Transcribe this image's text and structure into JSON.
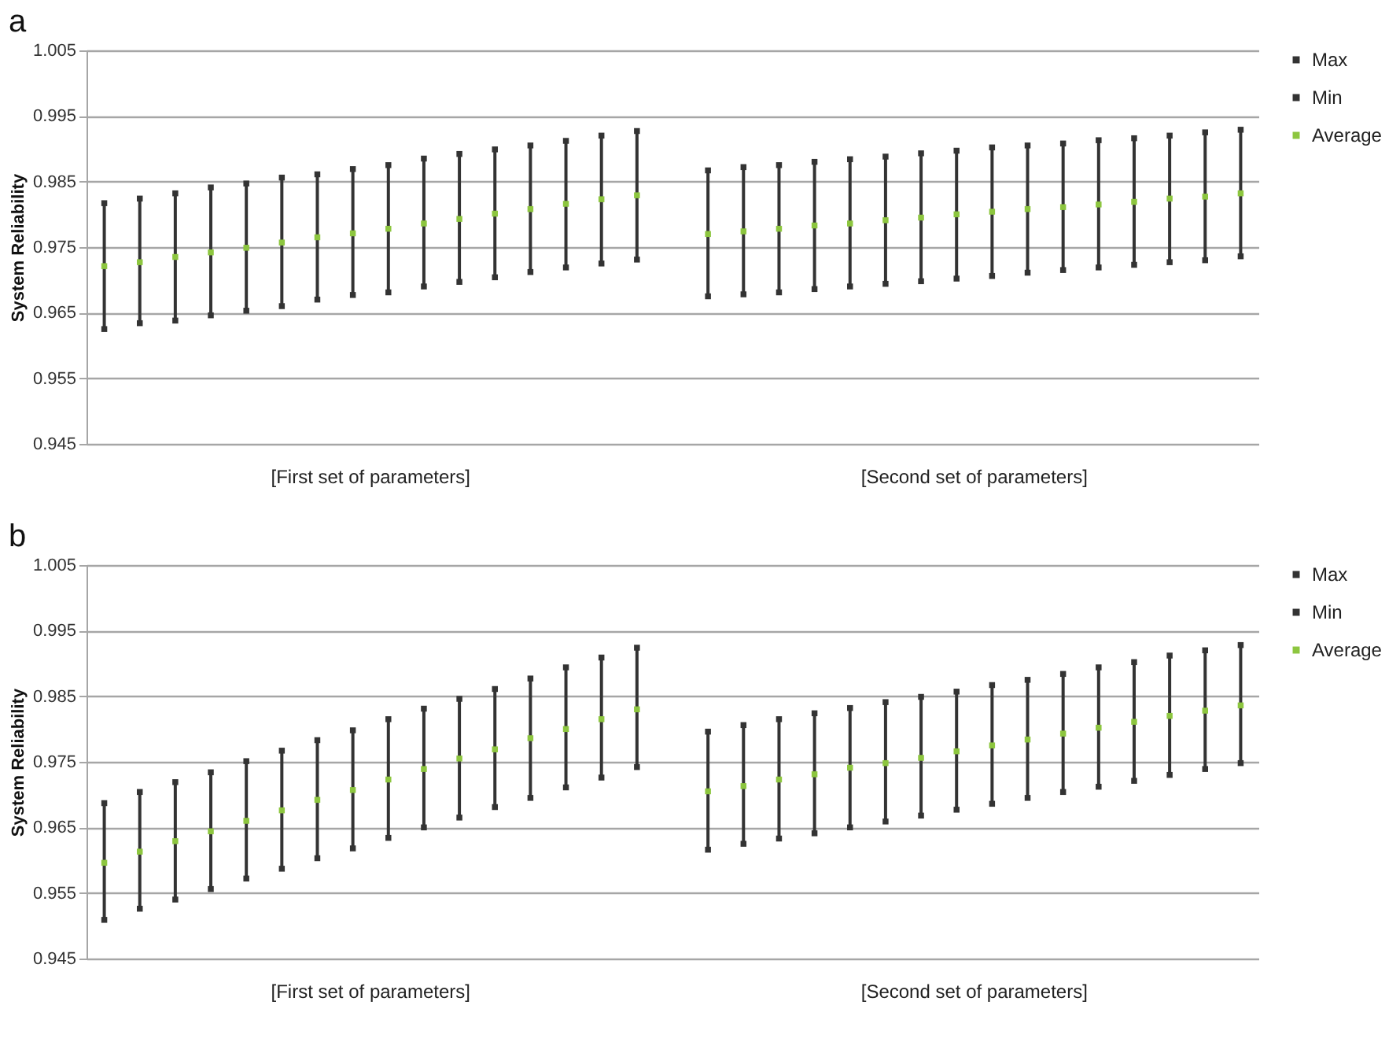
{
  "chart_data": [
    {
      "type": "scatter",
      "title": "a",
      "ylabel": "System Reliability",
      "categories": [
        null,
        null,
        null,
        null,
        null,
        null,
        null,
        null,
        null,
        null,
        null,
        null,
        null,
        null,
        null,
        null,
        null,
        null,
        null,
        null,
        null,
        null,
        null,
        null,
        null,
        null,
        null,
        null,
        null,
        null,
        null,
        null,
        null
      ],
      "ylim": [
        0.945,
        1.005
      ],
      "yticks": [
        0.945,
        0.955,
        0.965,
        0.975,
        0.985,
        0.995,
        1.005
      ],
      "grid": "y",
      "legend": "right",
      "annotations": [
        "[First set of parameters]",
        "[Second set of parameters]"
      ],
      "series": [
        {
          "name": "Max",
          "color": "#333333",
          "marker": "square",
          "values": [
            0.9817,
            0.9824,
            0.9832,
            0.9841,
            0.9847,
            0.9856,
            0.9861,
            0.9869,
            0.9875,
            0.9885,
            0.9892,
            0.9899,
            0.9905,
            0.9912,
            0.992,
            0.9927,
            null,
            0.9867,
            0.9872,
            0.9875,
            0.988,
            0.9884,
            0.9888,
            0.9893,
            0.9897,
            0.9902,
            0.9905,
            0.9908,
            0.9913,
            0.9916,
            0.992,
            0.9925,
            0.9929
          ]
        },
        {
          "name": "Min",
          "color": "#333333",
          "marker": "square",
          "values": [
            0.9625,
            0.9634,
            0.9638,
            0.9646,
            0.9653,
            0.966,
            0.967,
            0.9677,
            0.9681,
            0.969,
            0.9697,
            0.9704,
            0.9712,
            0.9719,
            0.9725,
            0.9731,
            null,
            0.9675,
            0.9678,
            0.9681,
            0.9686,
            0.969,
            0.9694,
            0.9698,
            0.9702,
            0.9706,
            0.9711,
            0.9715,
            0.9719,
            0.9723,
            0.9727,
            0.973,
            0.9736
          ]
        },
        {
          "name": "Average",
          "color": "#8dc63f",
          "marker": "square",
          "values": [
            0.9721,
            0.9727,
            0.9735,
            0.9742,
            0.9749,
            0.9757,
            0.9765,
            0.9771,
            0.9778,
            0.9786,
            0.9793,
            0.9801,
            0.9808,
            0.9816,
            0.9823,
            0.9829,
            null,
            0.977,
            0.9774,
            0.9778,
            0.9783,
            0.9786,
            0.9791,
            0.9795,
            0.98,
            0.9804,
            0.9808,
            0.9811,
            0.9815,
            0.9819,
            0.9824,
            0.9827,
            0.9832
          ]
        }
      ]
    },
    {
      "type": "scatter",
      "title": "b",
      "ylabel": "System Reliability",
      "categories": [
        null,
        null,
        null,
        null,
        null,
        null,
        null,
        null,
        null,
        null,
        null,
        null,
        null,
        null,
        null,
        null,
        null,
        null,
        null,
        null,
        null,
        null,
        null,
        null,
        null,
        null,
        null,
        null,
        null,
        null,
        null,
        null,
        null
      ],
      "ylim": [
        0.945,
        1.005
      ],
      "yticks": [
        0.945,
        0.955,
        0.965,
        0.975,
        0.985,
        0.995,
        1.005
      ],
      "grid": "y",
      "legend": "right",
      "annotations": [
        "[First set of parameters]",
        "[Second set of parameters]"
      ],
      "series": [
        {
          "name": "Max",
          "color": "#333333",
          "marker": "square",
          "values": [
            0.9687,
            0.9704,
            0.9719,
            0.9734,
            0.9751,
            0.9767,
            0.9783,
            0.9798,
            0.9815,
            0.9831,
            0.9846,
            0.9861,
            0.9877,
            0.9894,
            0.9909,
            0.9924,
            null,
            0.9796,
            0.9806,
            0.9815,
            0.9824,
            0.9832,
            0.9841,
            0.9849,
            0.9857,
            0.9867,
            0.9875,
            0.9884,
            0.9894,
            0.9902,
            0.9912,
            0.992,
            0.9928
          ]
        },
        {
          "name": "Min",
          "color": "#333333",
          "marker": "square",
          "values": [
            0.9509,
            0.9526,
            0.954,
            0.9556,
            0.9572,
            0.9587,
            0.9603,
            0.9618,
            0.9634,
            0.965,
            0.9665,
            0.9681,
            0.9695,
            0.9711,
            0.9726,
            0.9742,
            null,
            0.9616,
            0.9625,
            0.9633,
            0.9641,
            0.965,
            0.9659,
            0.9668,
            0.9677,
            0.9686,
            0.9695,
            0.9704,
            0.9712,
            0.9721,
            0.973,
            0.9739,
            0.9748
          ]
        },
        {
          "name": "Average",
          "color": "#8dc63f",
          "marker": "square",
          "values": [
            0.9596,
            0.9613,
            0.9629,
            0.9644,
            0.966,
            0.9676,
            0.9692,
            0.9707,
            0.9723,
            0.9739,
            0.9755,
            0.9769,
            0.9786,
            0.98,
            0.9815,
            0.983,
            null,
            0.9705,
            0.9713,
            0.9723,
            0.9731,
            0.9741,
            0.9748,
            0.9756,
            0.9766,
            0.9775,
            0.9784,
            0.9793,
            0.9802,
            0.9811,
            0.982,
            0.9828,
            0.9836
          ]
        }
      ]
    }
  ]
}
